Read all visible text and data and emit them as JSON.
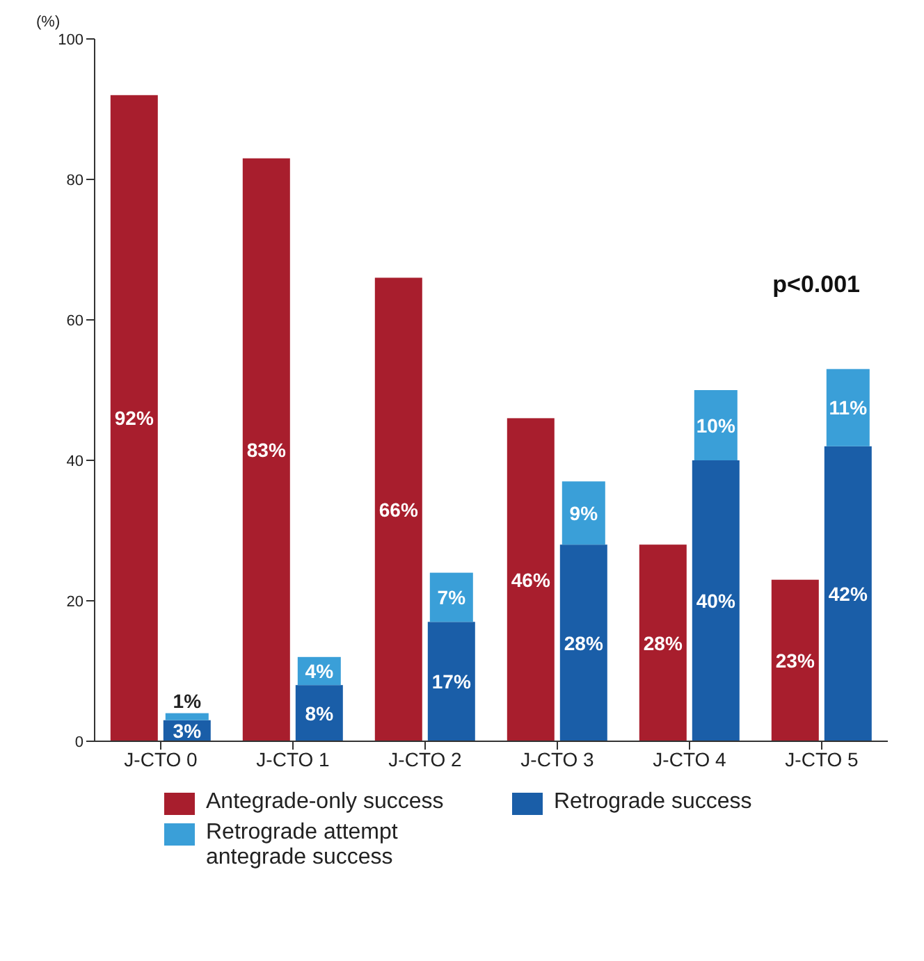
{
  "chart_data": {
    "type": "bar",
    "ylabel": "(%)",
    "categories": [
      "J-CTO 0",
      "J-CTO 1",
      "J-CTO 2",
      "J-CTO 3",
      "J-CTO 4",
      "J-CTO 5"
    ],
    "series": [
      {
        "name": "Antegrade-only success",
        "color": "#a81e2d",
        "values": [
          92,
          83,
          66,
          46,
          28,
          23
        ],
        "value_labels": [
          "92%",
          "83%",
          "66%",
          "46%",
          "28%",
          "23%"
        ]
      },
      {
        "name": "Retrograde success",
        "color": "#1a5ea8",
        "values": [
          3,
          8,
          17,
          28,
          40,
          42
        ],
        "value_labels": [
          "3%",
          "8%",
          "17%",
          "28%",
          "40%",
          "42%"
        ]
      },
      {
        "name": "Retrograde attempt antegrade success",
        "color": "#3a9fd8",
        "values": [
          1,
          4,
          7,
          9,
          10,
          11
        ],
        "base": [
          3,
          8,
          17,
          28,
          40,
          42
        ],
        "value_labels": [
          "1%",
          "4%",
          "7%",
          "9%",
          "10%",
          "11%"
        ]
      }
    ],
    "ylim": [
      0,
      100
    ],
    "yticks": [
      0,
      20,
      40,
      60,
      80,
      100
    ],
    "legend": "bottom",
    "annotations": [
      "p<0.001"
    ]
  }
}
